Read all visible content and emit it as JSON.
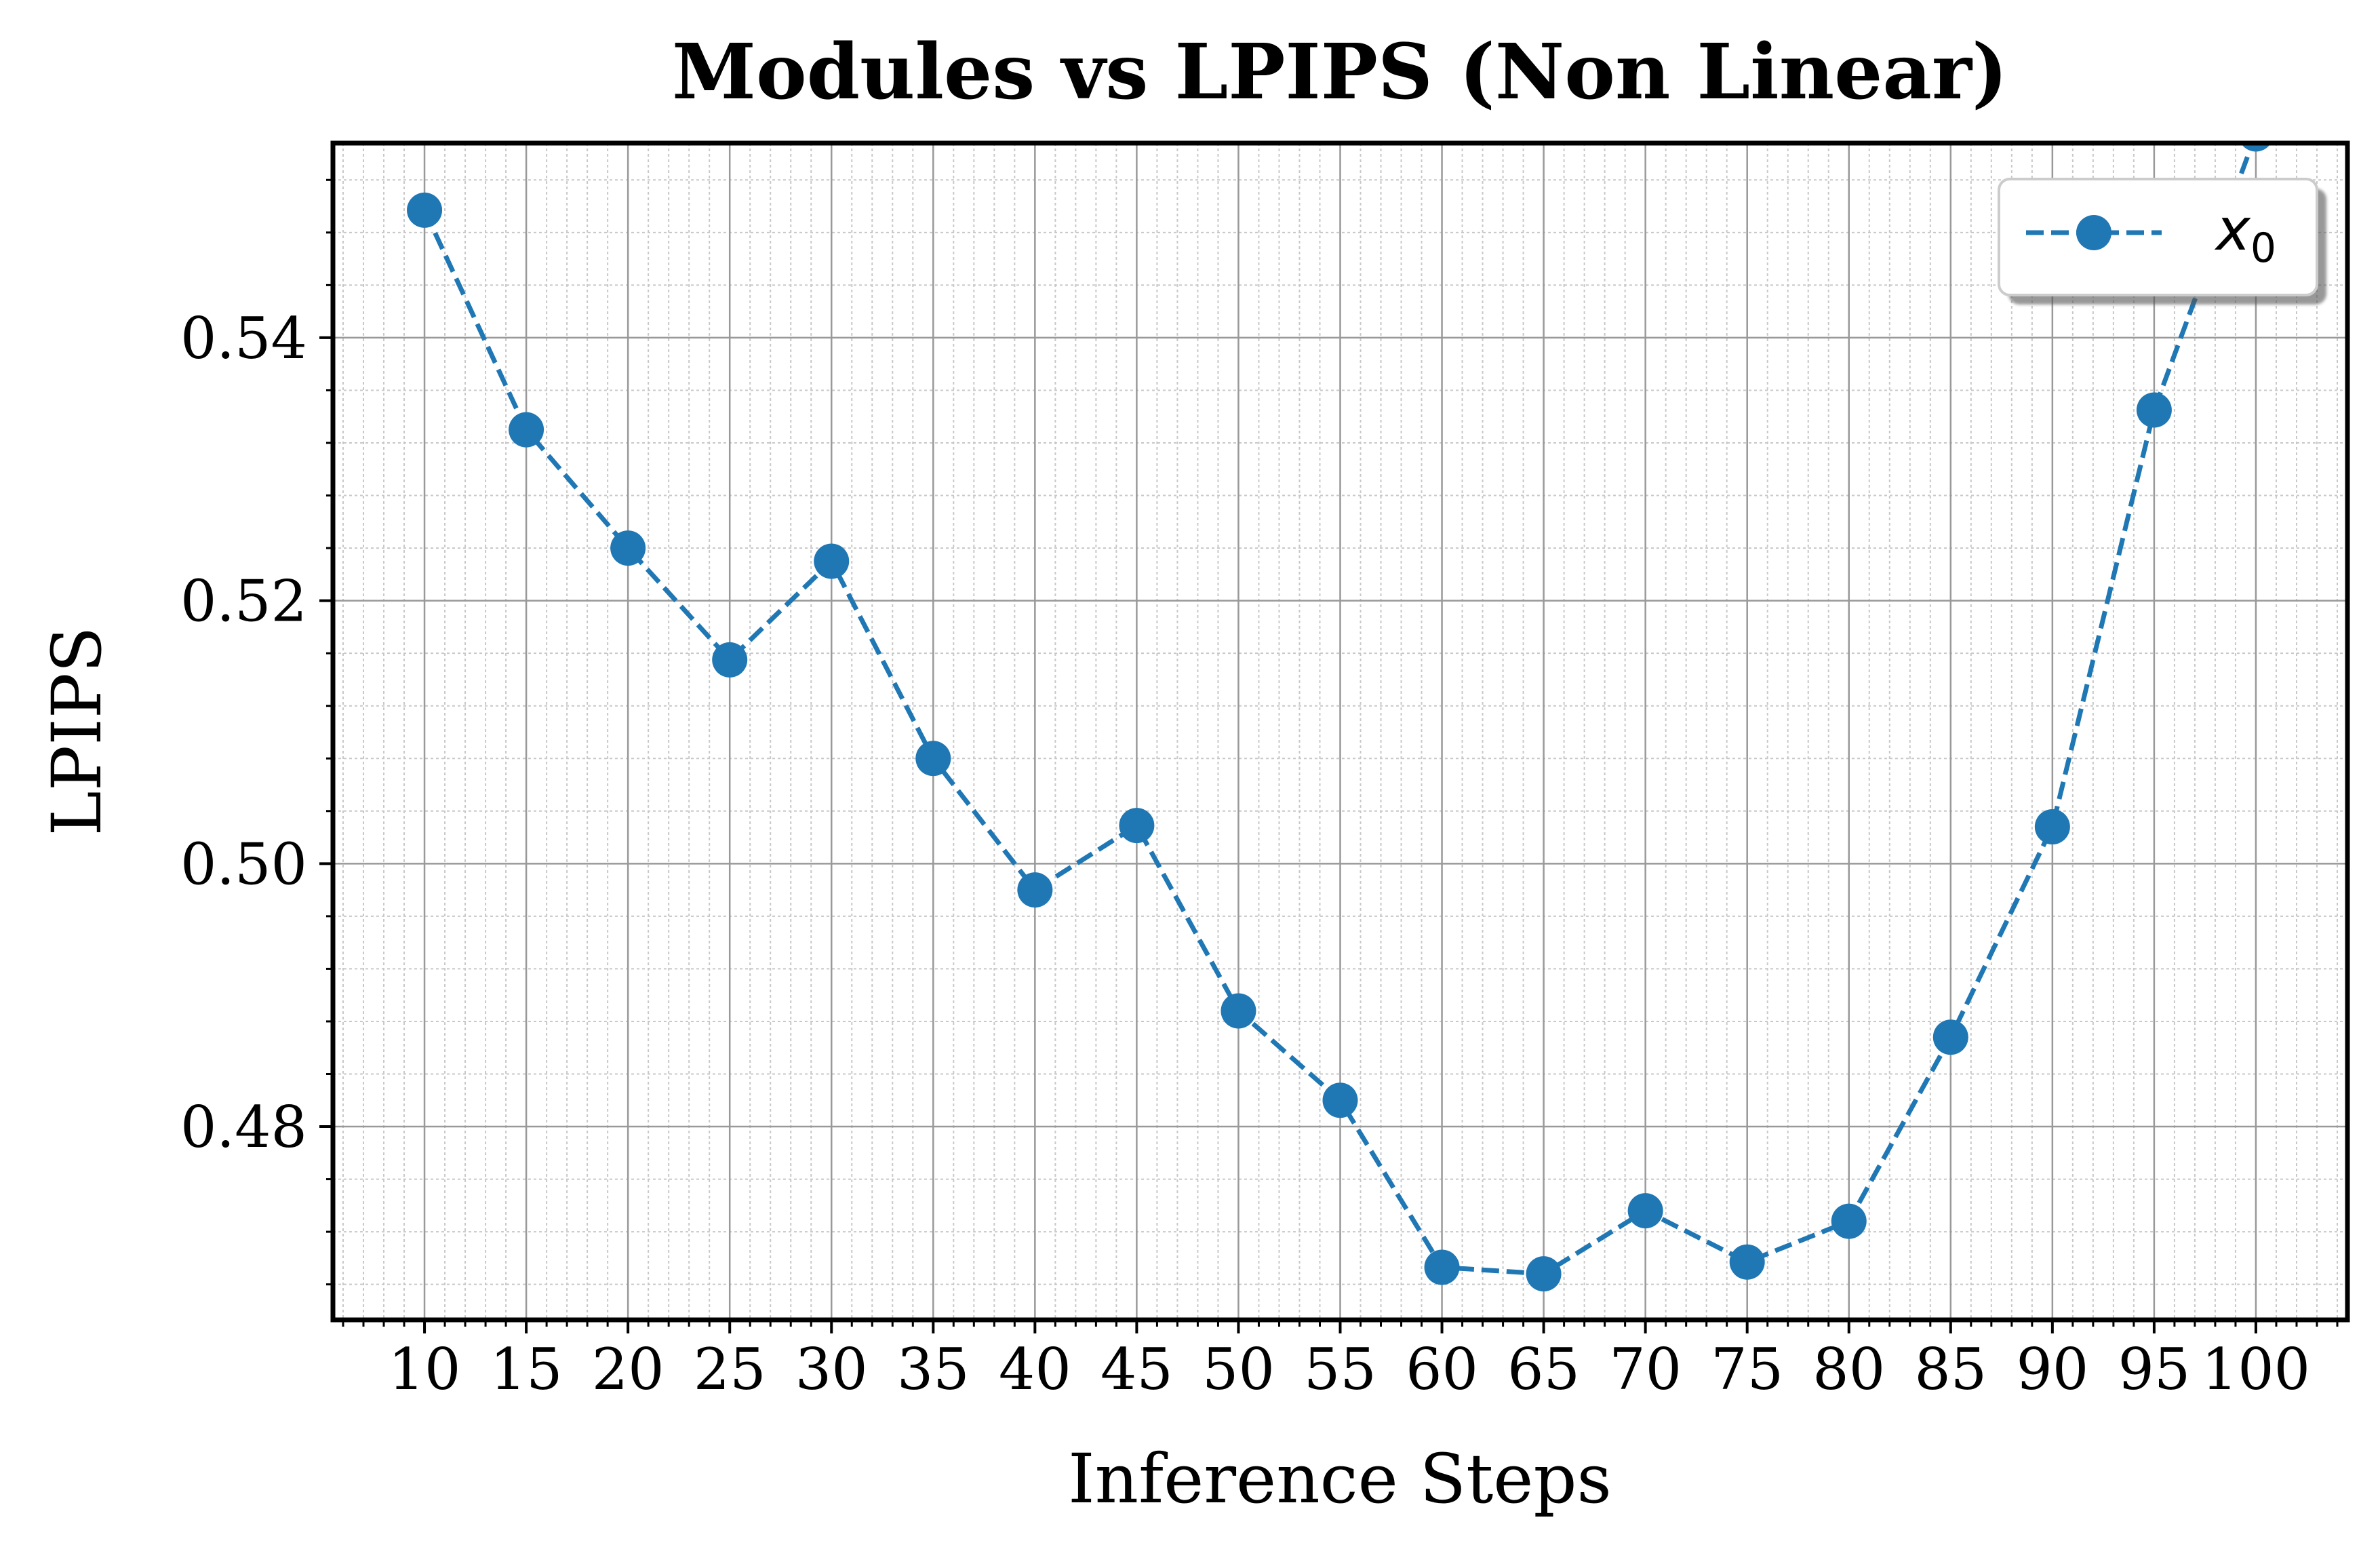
{
  "chart_data": {
    "type": "line",
    "title": "Modules vs LPIPS (Non Linear)",
    "xlabel": "Inference Steps",
    "ylabel": "LPIPS",
    "x": [
      10,
      15,
      20,
      25,
      30,
      35,
      40,
      45,
      50,
      55,
      60,
      65,
      70,
      75,
      80,
      85,
      90,
      95,
      100
    ],
    "xticks": [
      10,
      15,
      20,
      25,
      30,
      35,
      40,
      45,
      50,
      55,
      60,
      65,
      70,
      75,
      80,
      85,
      90,
      95,
      100
    ],
    "yticks": [
      0.48,
      0.5,
      0.52,
      0.54
    ],
    "ytick_labels": [
      "0.48",
      "0.50",
      "0.52",
      "0.54"
    ],
    "xlim": [
      5.5,
      104.5
    ],
    "ylim": [
      0.4653,
      0.5548
    ],
    "grid": true,
    "legend_position": "top-right",
    "series": [
      {
        "name": "x",
        "name_subscript": "0",
        "color": "#1f77b4",
        "line_style": "dashed",
        "marker": "circle",
        "values": [
          0.5497,
          0.533,
          0.524,
          0.5155,
          0.523,
          0.508,
          0.498,
          0.5029,
          0.4888,
          0.482,
          0.4693,
          0.4688,
          0.4736,
          0.4697,
          0.4728,
          0.4868,
          0.5028,
          0.5345,
          0.5555
        ]
      }
    ]
  }
}
